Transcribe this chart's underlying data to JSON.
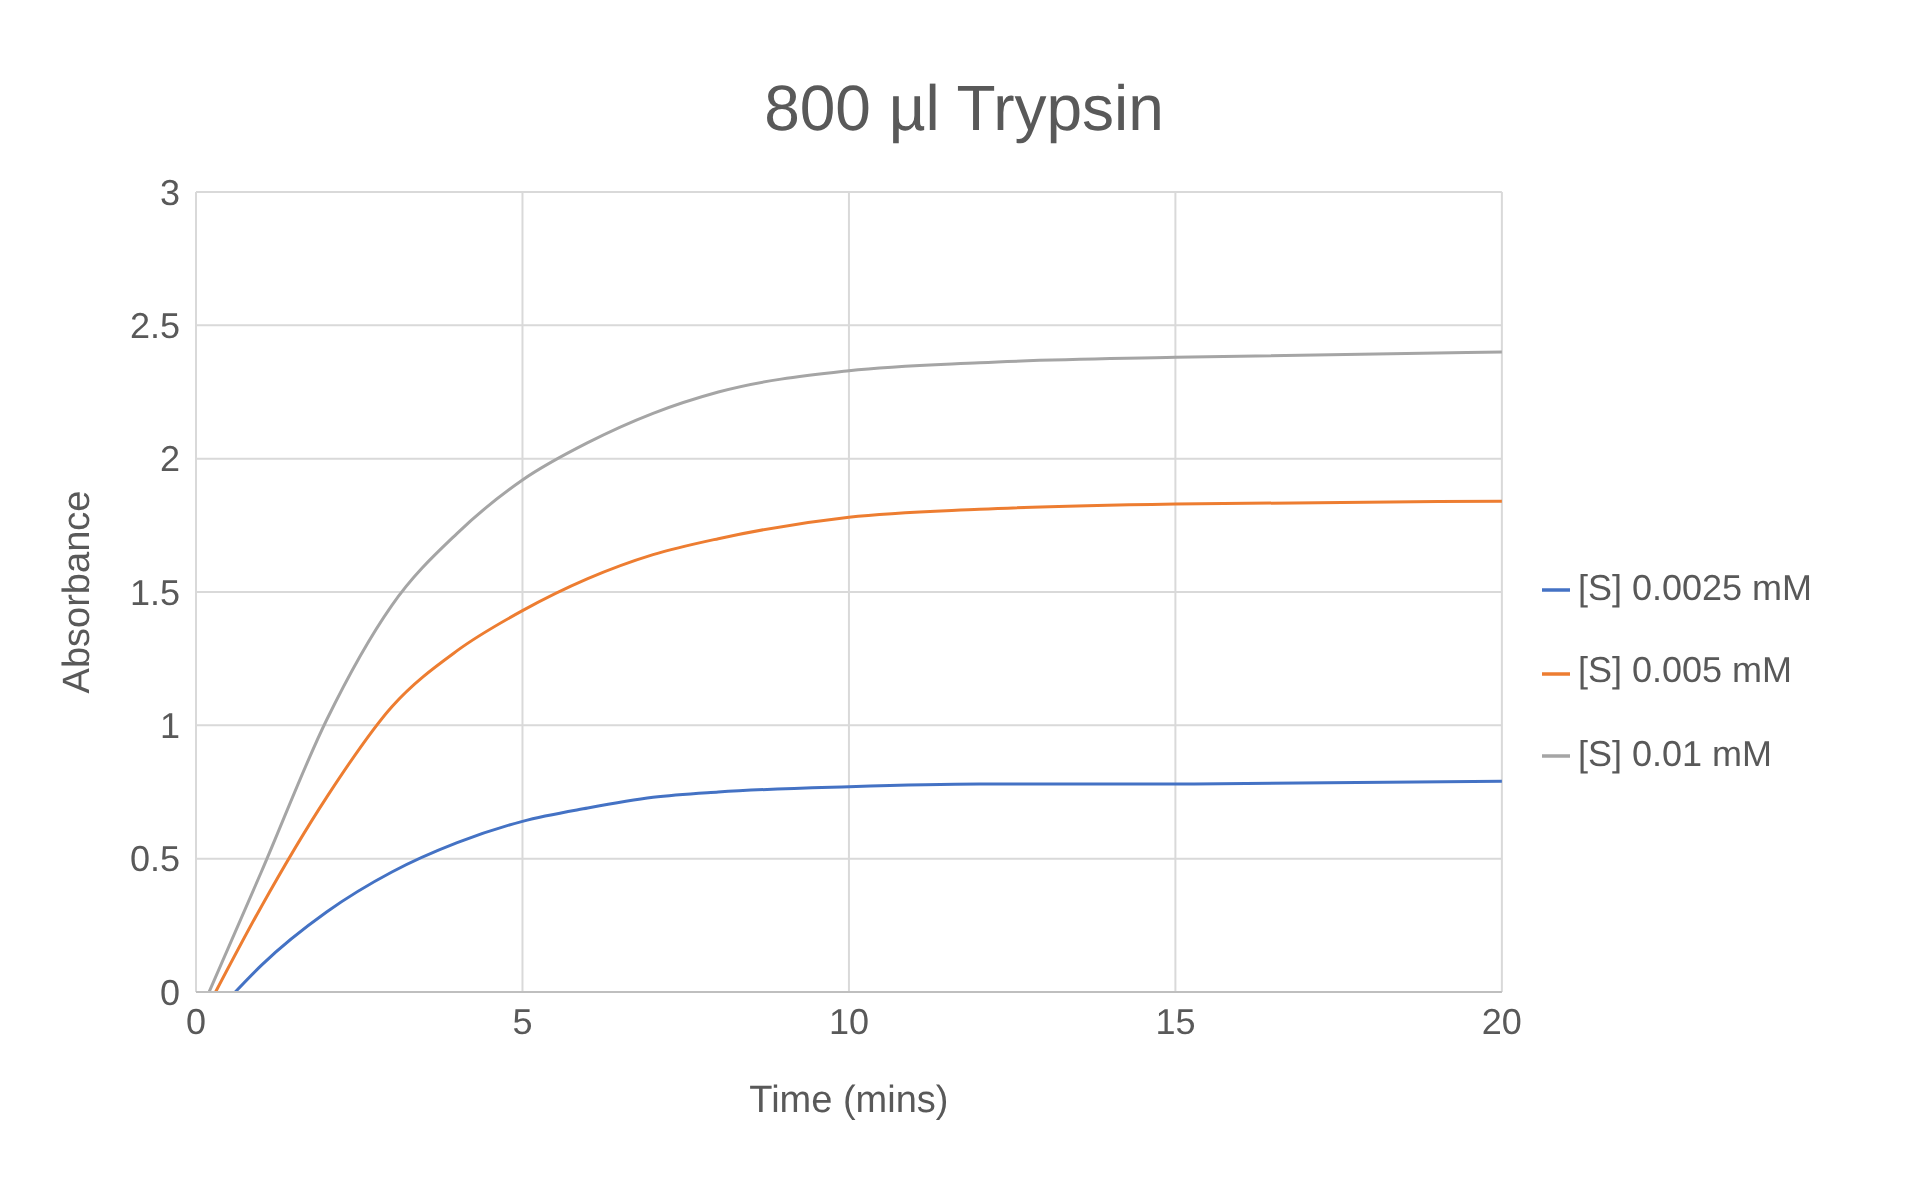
{
  "chart_data": {
    "type": "line",
    "title": "800 µl Trypsin",
    "xlabel": "Time (mins)",
    "ylabel": "Absorbance",
    "xlim": [
      0,
      20
    ],
    "xticks": [
      0,
      5,
      10,
      15,
      20
    ],
    "ylim": [
      0,
      3
    ],
    "yticks": [
      0,
      0.5,
      1,
      1.5,
      2,
      2.5,
      3
    ],
    "grid": true,
    "legend": "right",
    "marker": "none",
    "series": [
      {
        "name": "[S] 0.0025 mM",
        "color": "#4472c4",
        "x": [
          0.6,
          1,
          2,
          3,
          4,
          5,
          6,
          7,
          8,
          10,
          12,
          15,
          20
        ],
        "values": [
          0,
          0.1,
          0.3,
          0.45,
          0.56,
          0.64,
          0.69,
          0.73,
          0.75,
          0.77,
          0.78,
          0.78,
          0.79
        ]
      },
      {
        "name": "[S] 0.005 mM",
        "color": "#ed7d31",
        "x": [
          0.3,
          1,
          2,
          3,
          4,
          5,
          6,
          7,
          8,
          10,
          12,
          15,
          20
        ],
        "values": [
          0,
          0.32,
          0.73,
          1.07,
          1.28,
          1.43,
          1.55,
          1.64,
          1.7,
          1.78,
          1.81,
          1.83,
          1.84
        ]
      },
      {
        "name": "[S] 0.01 mM",
        "color": "#a5a5a5",
        "x": [
          0.2,
          1,
          2,
          3,
          4,
          5,
          6,
          7,
          8,
          10,
          12,
          15,
          20
        ],
        "values": [
          0,
          0.45,
          1.02,
          1.45,
          1.72,
          1.92,
          2.06,
          2.17,
          2.25,
          2.33,
          2.36,
          2.38,
          2.4
        ]
      }
    ]
  }
}
